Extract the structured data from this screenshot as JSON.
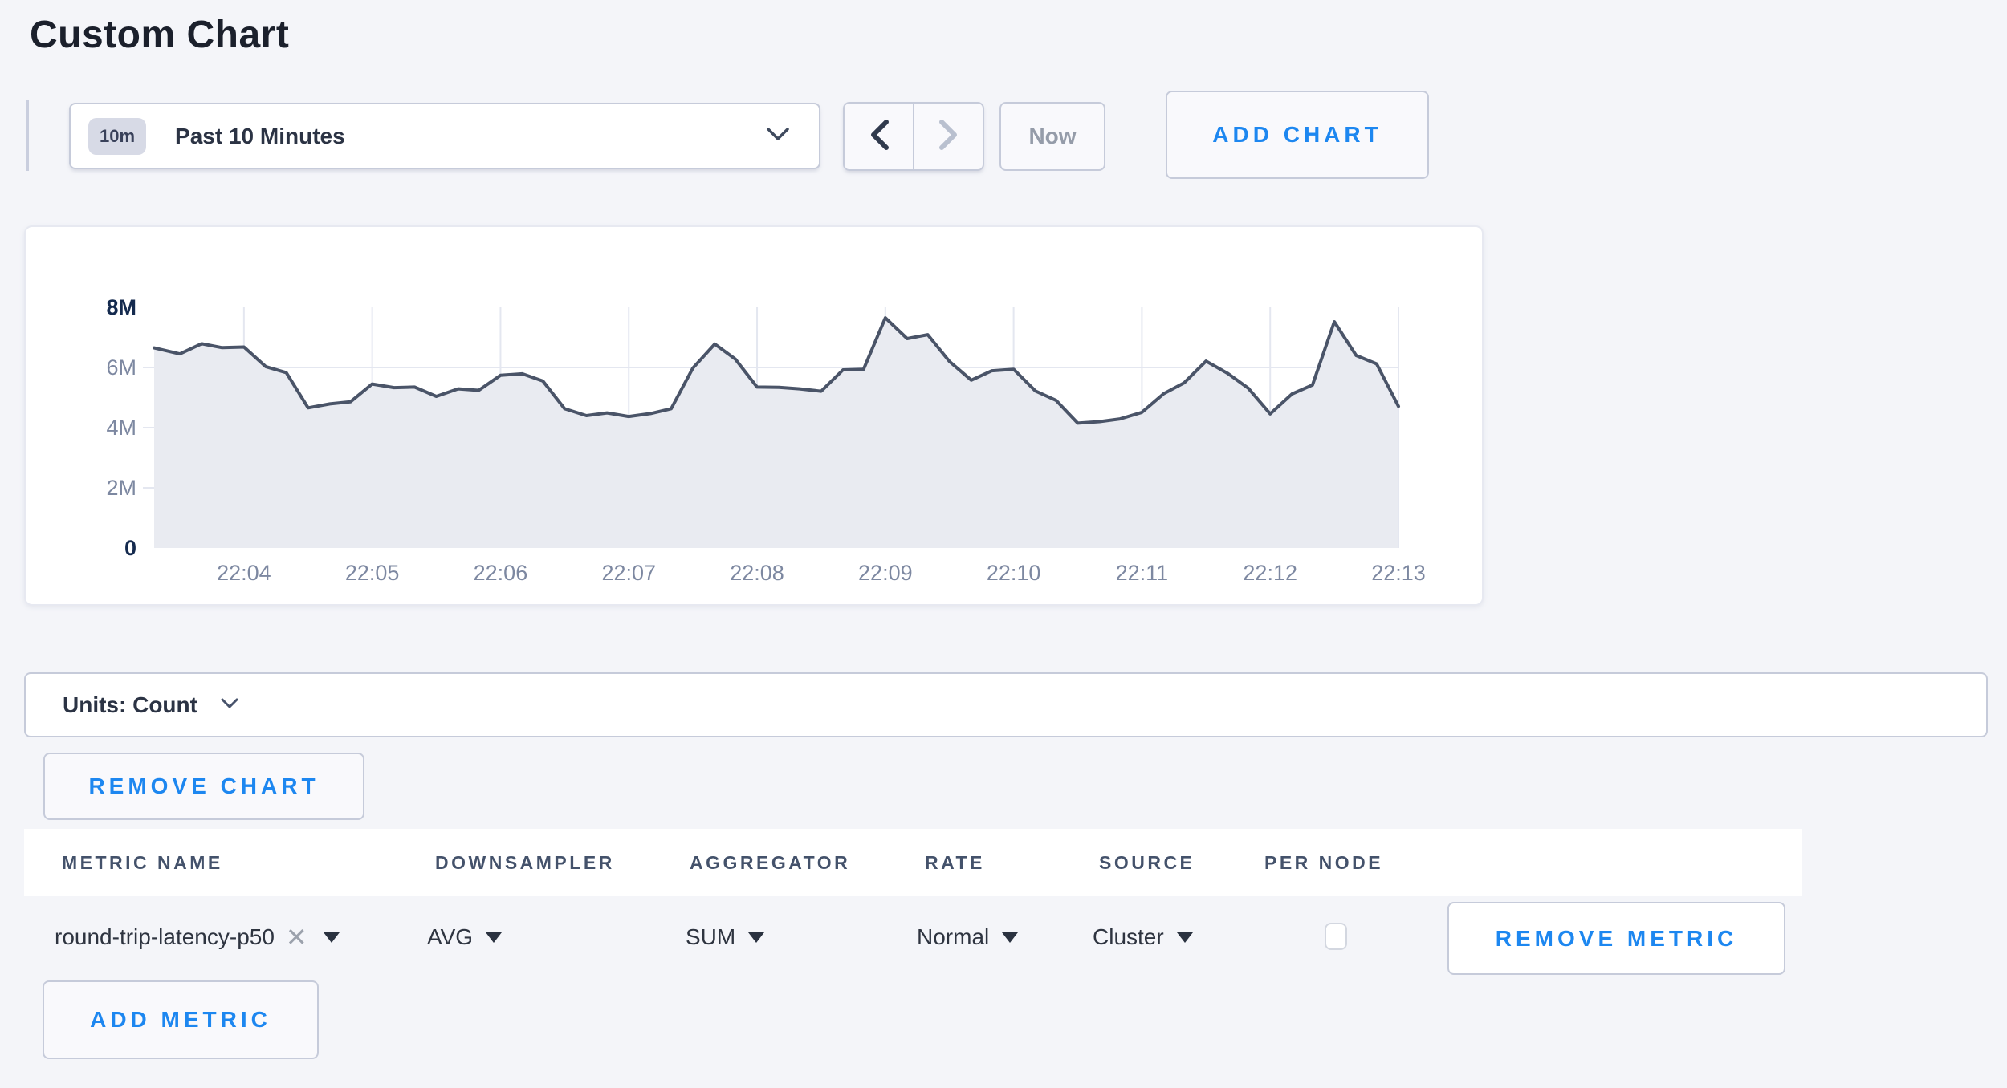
{
  "page": {
    "title": "Custom Chart"
  },
  "colors": {
    "accent_blue": "#1d87f0",
    "line": "#4a5468",
    "area_fill": "#e9ebf1",
    "grid": "#e4e7f0",
    "navy_label": "#142a4e",
    "gray_label": "#7d88a1",
    "control_border": "#c6cbda",
    "page_background": "#f4f5f9"
  },
  "toolbar": {
    "time_range_badge": "10m",
    "time_range_label": "Past 10 Minutes",
    "now_label": "Now",
    "add_chart_label": "ADD CHART",
    "icons": {
      "time_range": "chevron-down-icon",
      "previous": "chevron-left-icon",
      "next": "chevron-right-icon",
      "units": "chevron-down-icon",
      "selects": "caret-down-icon",
      "metric_remove": "x-icon"
    }
  },
  "chart_data": {
    "type": "area",
    "title": "",
    "xlabel": "",
    "ylabel": "",
    "legend": "none",
    "grid": true,
    "x_domain_minutes_after_2200": [
      3.3,
      13
    ],
    "x_ticks": [
      "22:04",
      "22:05",
      "22:06",
      "22:07",
      "22:08",
      "22:09",
      "22:10",
      "22:11",
      "22:12",
      "22:13"
    ],
    "x_tick_minutes": [
      4,
      5,
      6,
      7,
      8,
      9,
      10,
      11,
      12,
      13
    ],
    "ylim_millions": [
      0,
      8
    ],
    "y_ticks": [
      {
        "label": "8M",
        "value": 8,
        "emphasis": true
      },
      {
        "label": "6M",
        "value": 6,
        "emphasis": false
      },
      {
        "label": "4M",
        "value": 4,
        "emphasis": false
      },
      {
        "label": "2M",
        "value": 2,
        "emphasis": false
      },
      {
        "label": "0",
        "value": 0,
        "emphasis": true
      }
    ],
    "series": [
      {
        "name": "round-trip-latency-p50",
        "t_minutes_after_2200": [
          3.3,
          3.5,
          3.67,
          3.83,
          4,
          4.17,
          4.33,
          4.5,
          4.67,
          4.83,
          5,
          5.17,
          5.33,
          5.5,
          5.67,
          5.83,
          6,
          6.17,
          6.33,
          6.5,
          6.67,
          6.83,
          7,
          7.17,
          7.33,
          7.5,
          7.67,
          7.83,
          8,
          8.17,
          8.33,
          8.5,
          8.67,
          8.83,
          9,
          9.17,
          9.33,
          9.5,
          9.67,
          9.83,
          10,
          10.17,
          10.33,
          10.5,
          10.67,
          10.83,
          11,
          11.17,
          11.33,
          11.5,
          11.67,
          11.83,
          12,
          12.17,
          12.33,
          12.5,
          12.67,
          12.83,
          13
        ],
        "values_millions": [
          6.65,
          6.45,
          6.79,
          6.66,
          6.68,
          6.03,
          5.83,
          4.66,
          4.79,
          4.86,
          5.45,
          5.33,
          5.35,
          5.04,
          5.29,
          5.24,
          5.74,
          5.79,
          5.55,
          4.63,
          4.4,
          4.49,
          4.37,
          4.47,
          4.63,
          5.98,
          6.78,
          6.28,
          5.35,
          5.34,
          5.29,
          5.21,
          5.92,
          5.94,
          7.65,
          6.96,
          7.09,
          6.2,
          5.58,
          5.89,
          5.94,
          5.22,
          4.91,
          4.15,
          4.2,
          4.29,
          4.51,
          5.13,
          5.49,
          6.21,
          5.8,
          5.31,
          4.46,
          5.12,
          5.42,
          7.52,
          6.4,
          6.12,
          4.71
        ]
      }
    ]
  },
  "units_bar": {
    "label": "Units: Count"
  },
  "actions": {
    "remove_chart_label": "REMOVE CHART",
    "add_metric_label": "ADD METRIC"
  },
  "metrics_table": {
    "columns": [
      "METRIC NAME",
      "DOWNSAMPLER",
      "AGGREGATOR",
      "RATE",
      "SOURCE",
      "PER NODE"
    ],
    "rows": [
      {
        "metric_name": "round-trip-latency-p50",
        "downsampler": "AVG",
        "aggregator": "SUM",
        "rate": "Normal",
        "source": "Cluster",
        "per_node_checked": false,
        "remove_label": "REMOVE METRIC"
      }
    ]
  }
}
